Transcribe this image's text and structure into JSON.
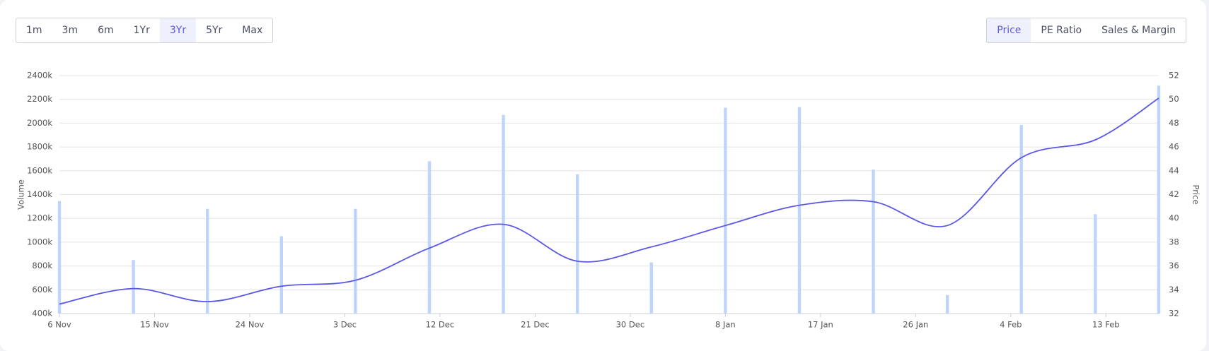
{
  "controls": {
    "ranges": [
      "1m",
      "3m",
      "6m",
      "1Yr",
      "3Yr",
      "5Yr",
      "Max"
    ],
    "selected_range": "3Yr",
    "tabs": [
      "Price",
      "PE Ratio",
      "Sales & Margin"
    ],
    "selected_tab": "Price"
  },
  "chart_data": {
    "type": "combo",
    "x": [
      "6 Nov",
      "13 Nov",
      "20 Nov",
      "27 Nov",
      "4 Dec",
      "11 Dec",
      "18 Dec",
      "25 Dec",
      "1 Jan",
      "8 Jan",
      "15 Jan",
      "22 Jan",
      "29 Jan",
      "5 Feb",
      "12 Feb",
      "18 Feb"
    ],
    "xlim": [
      "6 Nov",
      "18 Feb"
    ],
    "xticks": [
      "6 Nov",
      "15 Nov",
      "24 Nov",
      "3 Dec",
      "12 Dec",
      "21 Dec",
      "30 Dec",
      "8 Jan",
      "17 Jan",
      "26 Jan",
      "4 Feb",
      "13 Feb"
    ],
    "series": [
      {
        "name": "Volume",
        "type": "bar",
        "axis": "y",
        "color": "#bfd4fb",
        "values": [
          1345000,
          850000,
          1280000,
          1050000,
          1280000,
          1680000,
          2070000,
          1570000,
          830000,
          2130000,
          2135000,
          1610000,
          555000,
          1985000,
          1235000,
          2315000
        ]
      },
      {
        "name": "Price",
        "type": "line",
        "axis": "y2",
        "color": "#5b57e6",
        "values": [
          32.8,
          34.1,
          33.0,
          34.3,
          34.8,
          37.5,
          39.5,
          36.4,
          37.6,
          39.4,
          41.1,
          41.4,
          39.4,
          45.1,
          46.6,
          50.1
        ]
      }
    ],
    "ylabel": "Volume",
    "y2label": "Price",
    "ylim": [
      400000,
      2400000
    ],
    "yticks": [
      {
        "value": 400000,
        "label": "400k"
      },
      {
        "value": 600000,
        "label": "600k"
      },
      {
        "value": 800000,
        "label": "800k"
      },
      {
        "value": 1000000,
        "label": "1000k"
      },
      {
        "value": 1200000,
        "label": "1200k"
      },
      {
        "value": 1400000,
        "label": "1400k"
      },
      {
        "value": 1600000,
        "label": "1600k"
      },
      {
        "value": 1800000,
        "label": "1800k"
      },
      {
        "value": 2000000,
        "label": "2000k"
      },
      {
        "value": 2200000,
        "label": "2200k"
      },
      {
        "value": 2400000,
        "label": "2400k"
      }
    ],
    "y2lim": [
      32,
      52
    ],
    "y2ticks": [
      32,
      34,
      36,
      38,
      40,
      42,
      44,
      46,
      48,
      50,
      52
    ],
    "grid": true
  }
}
